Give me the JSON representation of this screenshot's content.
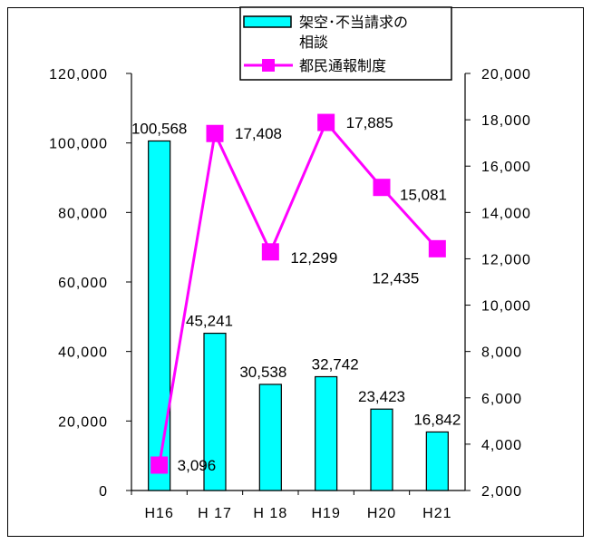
{
  "chart_data": {
    "type": "bar+line",
    "categories": [
      "H16",
      "H 17",
      "H 18",
      "H19",
      "H20",
      "H21"
    ],
    "series": [
      {
        "name": "架空･不当請求の相談",
        "type": "bar",
        "axis": "left",
        "color": "#00FFFF",
        "values": [
          100568,
          45241,
          30538,
          32742,
          23423,
          16842
        ],
        "labels": [
          "100,568",
          "45,241",
          "30,538",
          "32,742",
          "23,423",
          "16,842"
        ]
      },
      {
        "name": "都民通報制度",
        "type": "line",
        "axis": "right",
        "color": "#FF00FF",
        "values": [
          3096,
          17408,
          12299,
          17885,
          15081,
          12435
        ],
        "labels": [
          "3,096",
          "17,408",
          "12,299",
          "17,885",
          "15,081",
          "12,435"
        ]
      }
    ],
    "y_left": {
      "range": [
        0,
        120000
      ],
      "ticks": [
        "0",
        "20,000",
        "40,000",
        "60,000",
        "80,000",
        "100,000",
        "120,000"
      ]
    },
    "y_right": {
      "range": [
        2000,
        20000
      ],
      "ticks": [
        "2,000",
        "4,000",
        "6,000",
        "8,000",
        "10,000",
        "12,000",
        "14,000",
        "16,000",
        "18,000",
        "20,000"
      ]
    },
    "legend": {
      "position": "top",
      "entries": [
        {
          "lines": [
            "架空･不当請求の",
            "相談"
          ]
        },
        {
          "lines": [
            "都民通報制度"
          ]
        }
      ]
    },
    "grid": false
  }
}
